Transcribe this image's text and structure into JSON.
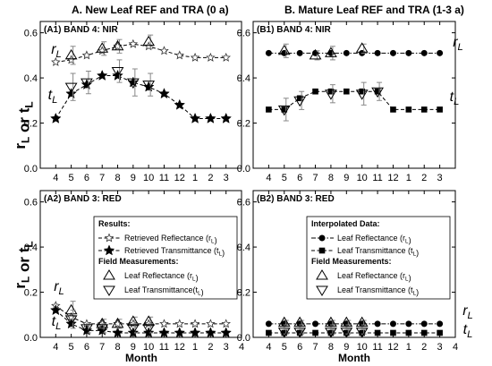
{
  "figure": {
    "column_titles": [
      "A. New Leaf REF and TRA (0 a)",
      "B. Mature Leaf REF and TRA (1-3 a)"
    ],
    "ylabel": "r_L or t_L",
    "xlabel": "Month"
  },
  "chart_data": [
    {
      "type": "line",
      "panel_label": "(A1)",
      "band_label": "BAND 4: NIR",
      "x_ticks": [
        "4",
        "5",
        "6",
        "7",
        "8",
        "9",
        "10",
        "11",
        "12",
        "1",
        "2",
        "3"
      ],
      "y_ticks": [
        "0.0",
        "0.2",
        "0.4",
        "0.6"
      ],
      "ylim": [
        0,
        0.65
      ],
      "curve_labels": [
        "r_L",
        "t_L"
      ],
      "series": [
        {
          "name": "Retrieved Reflectance (r_L)",
          "marker": "open-star",
          "line": "dashed",
          "values": [
            0.47,
            0.48,
            0.5,
            0.52,
            0.54,
            0.55,
            0.54,
            0.52,
            0.5,
            0.49,
            0.49,
            0.49
          ]
        },
        {
          "name": "Retrieved Transmittance (t_L)",
          "marker": "filled-star",
          "line": "dashed",
          "values": [
            0.22,
            0.33,
            0.37,
            0.41,
            0.41,
            0.38,
            0.36,
            0.33,
            0.28,
            0.22,
            0.22,
            0.22
          ]
        },
        {
          "name": "Leaf Reflectance (r_L)",
          "marker": "open-triangle-up",
          "line": "none",
          "x_index": [
            1,
            3,
            4,
            6
          ],
          "values": [
            0.5,
            0.53,
            0.54,
            0.56
          ],
          "errors": [
            0.04,
            0.03,
            0.03,
            0.03
          ]
        },
        {
          "name": "Leaf Transmittance(t_L)",
          "marker": "open-triangle-down",
          "line": "none",
          "x_index": [
            1,
            2,
            4,
            5,
            6
          ],
          "values": [
            0.36,
            0.38,
            0.43,
            0.38,
            0.37
          ],
          "errors": [
            0.06,
            0.05,
            0.05,
            0.06,
            0.05
          ]
        }
      ]
    },
    {
      "type": "line",
      "panel_label": "(B1)",
      "band_label": "BAND 4: NIR",
      "x_ticks": [
        "4",
        "5",
        "6",
        "7",
        "8",
        "9",
        "10",
        "11",
        "12",
        "1",
        "2",
        "3"
      ],
      "y_ticks": [
        "0.0",
        "0.2",
        "0.4",
        "0.6"
      ],
      "ylim": [
        0,
        0.65
      ],
      "curve_labels": [
        "r_L",
        "t_L"
      ],
      "series": [
        {
          "name": "Leaf Reflectance (r_L)",
          "marker": "filled-circle",
          "line": "dash-dot",
          "values": [
            0.51,
            0.51,
            0.51,
            0.51,
            0.51,
            0.51,
            0.51,
            0.51,
            0.51,
            0.51,
            0.51,
            0.51
          ]
        },
        {
          "name": "Leaf Transmittance (t_L)",
          "marker": "filled-square",
          "line": "dashed",
          "values": [
            0.26,
            0.26,
            0.31,
            0.34,
            0.34,
            0.34,
            0.34,
            0.34,
            0.26,
            0.26,
            0.26,
            0.26
          ]
        },
        {
          "name": "Leaf Reflectance (r_L)",
          "marker": "open-triangle-up",
          "line": "none",
          "x_index": [
            1,
            3,
            4,
            6
          ],
          "values": [
            0.52,
            0.5,
            0.51,
            0.53
          ],
          "errors": [
            0.03,
            0.02,
            0.03,
            0.02
          ]
        },
        {
          "name": "Leaf Transmittance (t_L)",
          "marker": "open-triangle-down",
          "line": "none",
          "x_index": [
            1,
            2,
            4,
            6,
            7
          ],
          "values": [
            0.26,
            0.3,
            0.33,
            0.33,
            0.34
          ],
          "errors": [
            0.05,
            0.04,
            0.04,
            0.05,
            0.04
          ]
        }
      ]
    },
    {
      "type": "line",
      "panel_label": "(A2)",
      "band_label": "BAND 3: RED",
      "x_ticks": [
        "4",
        "5",
        "6",
        "7",
        "8",
        "9",
        "10",
        "11",
        "12",
        "1",
        "2",
        "3",
        "4"
      ],
      "y_ticks": [
        "0.0",
        "0.2",
        "0.4",
        "0.6"
      ],
      "ylim": [
        0,
        0.65
      ],
      "curve_labels": [
        "r_L",
        "t_L"
      ],
      "legend": {
        "results_heading": "Results:",
        "field_heading": "Field Measurements:",
        "entries": [
          "Retrieved Reflectance (r_L)",
          "Retrieved Transmittance (t_L)",
          "Leaf Reflectance (r_L)",
          "Leaf Transmittance(t_L)"
        ]
      },
      "series": [
        {
          "name": "Retrieved Reflectance (r_L)",
          "marker": "open-star",
          "line": "dashed",
          "values": [
            0.14,
            0.09,
            0.06,
            0.06,
            0.06,
            0.06,
            0.06,
            0.06,
            0.06,
            0.06,
            0.06,
            0.06
          ]
        },
        {
          "name": "Retrieved Transmittance (t_L)",
          "marker": "filled-star",
          "line": "dashed",
          "values": [
            0.12,
            0.06,
            0.03,
            0.03,
            0.02,
            0.02,
            0.02,
            0.02,
            0.02,
            0.02,
            0.02,
            0.02
          ]
        },
        {
          "name": "Leaf Reflectance (r_L)",
          "marker": "open-triangle-up",
          "line": "none",
          "x_index": [
            1,
            3,
            4,
            5,
            6
          ],
          "values": [
            0.12,
            0.06,
            0.06,
            0.07,
            0.07
          ],
          "errors": [
            0.04,
            0.02,
            0.02,
            0.02,
            0.02
          ]
        },
        {
          "name": "Leaf Transmittance(t_L)",
          "marker": "open-triangle-down",
          "line": "none",
          "x_index": [
            1,
            2,
            3,
            5,
            6
          ],
          "values": [
            0.08,
            0.04,
            0.04,
            0.04,
            0.04
          ],
          "errors": [
            0.04,
            0.02,
            0.02,
            0.02,
            0.02
          ]
        }
      ]
    },
    {
      "type": "line",
      "panel_label": "(B2)",
      "band_label": "BAND 3: RED",
      "x_ticks": [
        "4",
        "5",
        "6",
        "7",
        "8",
        "9",
        "10",
        "11",
        "12",
        "1",
        "2",
        "3",
        "4"
      ],
      "y_ticks": [
        "0.0",
        "0.2",
        "0.4",
        "0.6"
      ],
      "ylim": [
        0,
        0.65
      ],
      "curve_labels": [
        "r_L",
        "t_L"
      ],
      "legend": {
        "results_heading": "Interpolated Data:",
        "field_heading": "Field Measurements:",
        "entries": [
          "Leaf Reflectance (r_L)",
          "Leaf Transmittance (t_L)",
          "Leaf Reflectance (r_L)",
          "Leaf Transmittance (t_L)"
        ]
      },
      "series": [
        {
          "name": "Leaf Reflectance (r_L)",
          "marker": "filled-circle",
          "line": "dash-dot",
          "values": [
            0.06,
            0.06,
            0.06,
            0.06,
            0.06,
            0.06,
            0.06,
            0.06,
            0.06,
            0.06,
            0.06,
            0.06
          ]
        },
        {
          "name": "Leaf Transmittance (t_L)",
          "marker": "filled-square",
          "line": "dashed",
          "values": [
            0.02,
            0.02,
            0.02,
            0.02,
            0.02,
            0.02,
            0.02,
            0.02,
            0.02,
            0.02,
            0.02,
            0.02
          ]
        },
        {
          "name": "Leaf Reflectance (r_L)",
          "marker": "open-triangle-up",
          "line": "none",
          "x_index": [
            1,
            2,
            4,
            5,
            6
          ],
          "values": [
            0.065,
            0.065,
            0.065,
            0.065,
            0.065
          ],
          "errors": [
            0.01,
            0.01,
            0.01,
            0.01,
            0.01
          ]
        },
        {
          "name": "Leaf Transmittance (t_L)",
          "marker": "open-triangle-down",
          "line": "none",
          "x_index": [
            1,
            2,
            4,
            5,
            6
          ],
          "values": [
            0.025,
            0.025,
            0.025,
            0.025,
            0.025
          ],
          "errors": [
            0.01,
            0.01,
            0.01,
            0.01,
            0.01
          ]
        }
      ]
    }
  ]
}
